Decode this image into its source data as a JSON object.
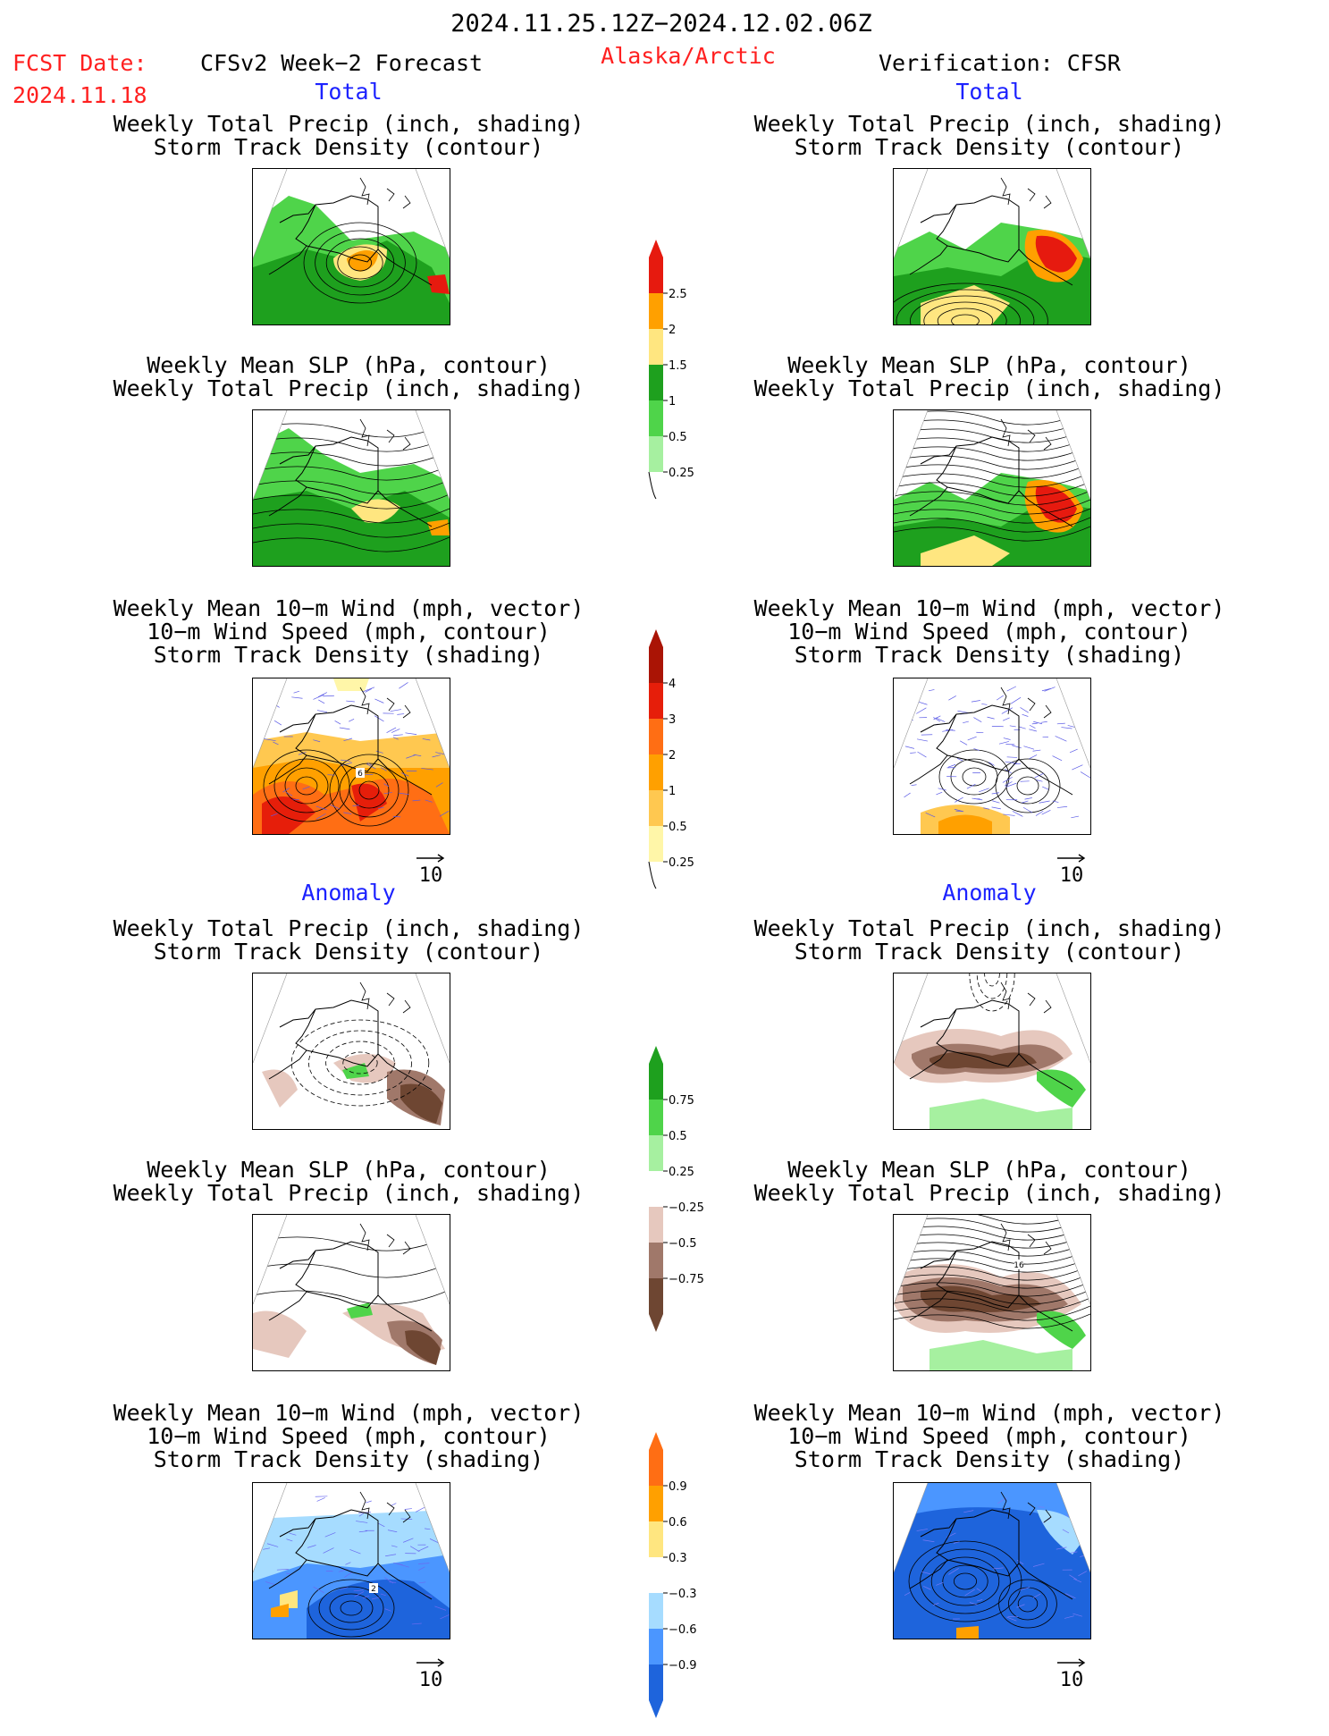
{
  "header": {
    "date_range": "2024.11.25.12Z−2024.12.02.06Z",
    "fcst_label": "FCST Date:",
    "fcst_date": "2024.11.18",
    "model_title": "CFSv2 Week−2 Forecast",
    "region": "Alaska/Arctic",
    "verification": "Verification: CFSR"
  },
  "sections": {
    "total": "Total",
    "anomaly": "Anomaly"
  },
  "titles": {
    "precip_storm": [
      "Weekly Total Precip (inch, shading)",
      "Storm Track Density (contour)"
    ],
    "slp_precip": [
      "Weekly Mean SLP (hPa, contour)",
      "Weekly Total Precip (inch, shading)"
    ],
    "wind_storm": [
      "Weekly Mean 10−m Wind (mph, vector)",
      "10−m Wind Speed (mph, contour)",
      "Storm Track Density (shading)"
    ]
  },
  "vector_reference": "10",
  "contour_labels": {
    "wind_total_fcst": "6",
    "wind_anom_fcst": "2",
    "slp_anom_cfsr": "16"
  },
  "colors": {
    "precip_total": [
      "#a6f0a0",
      "#4fd44a",
      "#1ea01e",
      "#ffe680",
      "#ffa000",
      "#e61a0f"
    ],
    "storm_total": [
      "#fff6a8",
      "#ffc850",
      "#ffa000",
      "#ff6e14",
      "#e61e0a",
      "#aa1405"
    ],
    "precip_anom": [
      "#6e4632",
      "#a0786a",
      "#e6c8be",
      "#ffffff",
      "#a6f0a0",
      "#4fd44a",
      "#1ea01e"
    ],
    "storm_anom": [
      "#1e64dc",
      "#4b96ff",
      "#a6dcff",
      "#ffffff",
      "#ffe680",
      "#ffa000",
      "#ff6e14"
    ]
  },
  "chart_data": [
    {
      "type": "heatmap",
      "name": "Total precipitation colorbar",
      "units": "inch",
      "levels": [
        0.25,
        0.5,
        1,
        1.5,
        2,
        2.5
      ],
      "tick_labels": [
        "0.25",
        "0.5",
        "1",
        "1.5",
        "2",
        "2.5"
      ]
    },
    {
      "type": "heatmap",
      "name": "Total storm track density colorbar",
      "levels": [
        0.25,
        0.5,
        1,
        2,
        3,
        4
      ],
      "tick_labels": [
        "0.25",
        "0.5",
        "1",
        "2",
        "3",
        "4"
      ]
    },
    {
      "type": "heatmap",
      "name": "Precipitation anomaly colorbar",
      "units": "inch",
      "levels": [
        -0.75,
        -0.5,
        -0.25,
        0.25,
        0.5,
        0.75
      ],
      "tick_labels": [
        "−0.75",
        "−0.5",
        "−0.25",
        "0.25",
        "0.5",
        "0.75"
      ]
    },
    {
      "type": "heatmap",
      "name": "Storm track density anomaly colorbar",
      "levels": [
        -0.9,
        -0.6,
        -0.3,
        0.3,
        0.6,
        0.9
      ],
      "tick_labels": [
        "−0.9",
        "−0.6",
        "−0.3",
        "0.3",
        "0.6",
        "0.9"
      ]
    }
  ]
}
